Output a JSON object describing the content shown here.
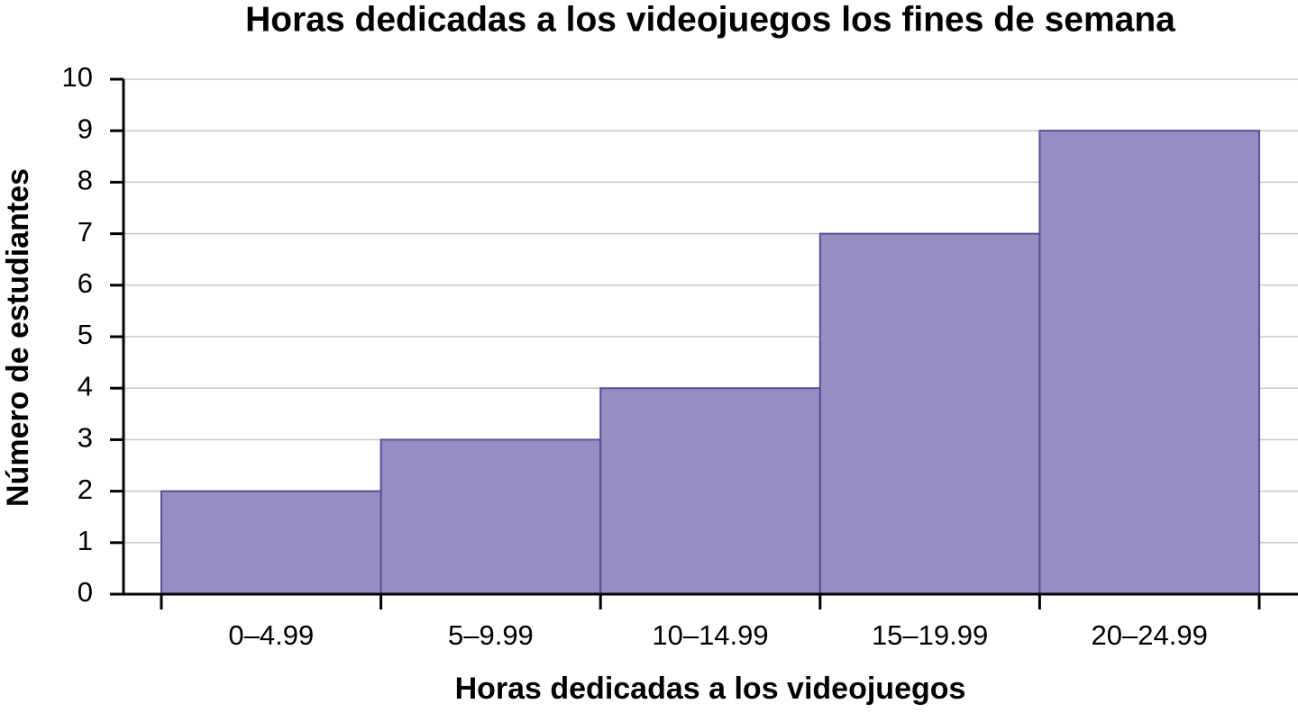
{
  "chart_data": {
    "type": "bar",
    "title": "Horas dedicadas a los videojuegos los fines de semana",
    "x_label": "Horas dedicadas a los videojuegos",
    "y_label": "Número de estudiantes",
    "categories": [
      "0–4.99",
      "5–9.99",
      "10–14.99",
      "15–19.99",
      "20–24.99"
    ],
    "values": [
      2,
      3,
      4,
      7,
      9
    ],
    "color": "#968dc3",
    "ylim": [
      0,
      10
    ],
    "yticks": [
      0,
      1,
      2,
      3,
      4,
      5,
      6,
      7,
      8,
      9,
      10
    ],
    "grid": true
  }
}
